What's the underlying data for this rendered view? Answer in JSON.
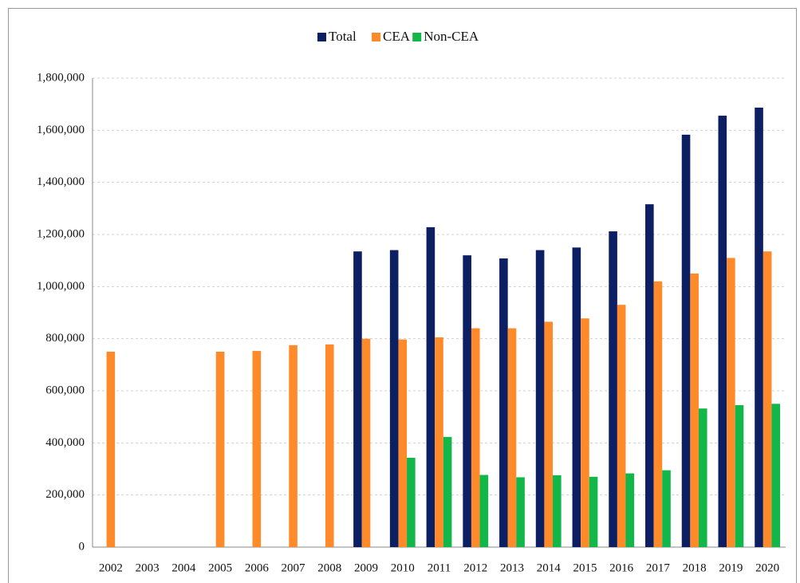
{
  "chart_data": {
    "type": "bar",
    "categories": [
      "2002",
      "2003",
      "2004",
      "2005",
      "2006",
      "2007",
      "2008",
      "2009",
      "2010",
      "2011",
      "2012",
      "2013",
      "2014",
      "2015",
      "2016",
      "2017",
      "2018",
      "2019",
      "2020"
    ],
    "series": [
      {
        "name": "Total",
        "color": "#0d1f63",
        "values": [
          null,
          null,
          null,
          null,
          null,
          null,
          null,
          1135000,
          1140000,
          1228000,
          1120000,
          1108000,
          1140000,
          1150000,
          1212000,
          1316000,
          1583000,
          1656000,
          1687000
        ]
      },
      {
        "name": "CEA",
        "color": "#ff8a2a",
        "values": [
          750000,
          null,
          null,
          750000,
          753000,
          775000,
          778000,
          800000,
          797000,
          805000,
          840000,
          840000,
          865000,
          878000,
          930000,
          1020000,
          1050000,
          1110000,
          1135000
        ]
      },
      {
        "name": "Non-CEA",
        "color": "#12b74a",
        "values": [
          null,
          null,
          null,
          null,
          null,
          null,
          null,
          null,
          343000,
          423000,
          277000,
          268000,
          276000,
          270000,
          283000,
          295000,
          532000,
          545000,
          550000
        ]
      }
    ],
    "ylim": [
      0,
      1800000
    ],
    "yticks": [
      0,
      {
        "value": 200000,
        "label": "200,000"
      },
      {
        "value": 400000,
        "label": "400,000"
      },
      {
        "value": 600000,
        "label": "600,000"
      },
      {
        "value": 800000,
        "label": "800,000"
      },
      {
        "value": 1000000,
        "label": "1,000,000"
      },
      {
        "value": 1200000,
        "label": "1,200,000"
      },
      {
        "value": 1400000,
        "label": "1,400,000"
      },
      {
        "value": 1600000,
        "label": "1,600,000"
      },
      {
        "value": 1800000,
        "label": "1,800,000"
      }
    ],
    "grid": true,
    "legend": "top"
  }
}
